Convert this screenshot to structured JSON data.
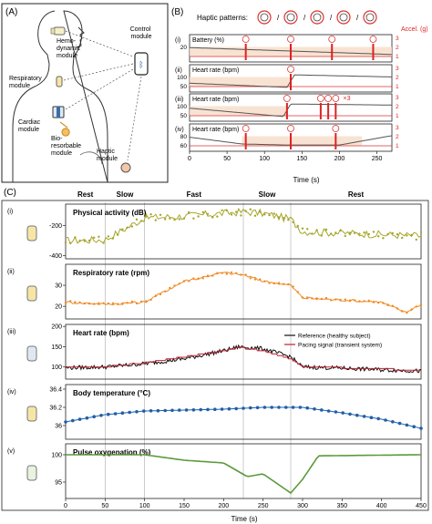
{
  "panel_a": {
    "label": "(A)",
    "modules": {
      "hemodynamic": "Hemo-\ndynamic\nmodule",
      "control": "Control\nmodule",
      "respiratory": "Respiratory\nmodule",
      "cardiac": "Cardiac\nmodule",
      "bioresorbable": "Bio-\nresorbable\nmodule",
      "haptic": "Haptic\nmodule"
    }
  },
  "panel_b": {
    "label": "(B)",
    "haptic_title": "Haptic patterns:",
    "separator": "/",
    "right_axis_label": "Accel. (g)",
    "xlabel": "Time (s)",
    "xticks": [
      0,
      50,
      100,
      150,
      200,
      250
    ],
    "x_range": [
      0,
      270
    ],
    "x3_label": "×3",
    "rows": [
      {
        "roman": "(i)",
        "title": "Battery (%)",
        "yticks": [
          20
        ],
        "rticks": [
          "3",
          "2",
          "1"
        ]
      },
      {
        "roman": "(ii)",
        "title": "Heart rate (bpm)",
        "yticks": [
          100,
          50
        ],
        "rticks": [
          "3",
          "2",
          "1"
        ]
      },
      {
        "roman": "(iii)",
        "title": "Heart rate (bpm)",
        "yticks": [
          100,
          50
        ],
        "rticks": [
          "3",
          "2",
          "1"
        ]
      },
      {
        "roman": "(iv)",
        "title": "Heart rate (bpm)",
        "yticks": [
          80,
          60
        ],
        "rticks": [
          "3",
          "2",
          "1"
        ]
      }
    ]
  },
  "panel_c": {
    "label": "(C)",
    "phases": [
      {
        "name": "Rest",
        "start": 0,
        "end": 50
      },
      {
        "name": "Slow",
        "start": 50,
        "end": 100
      },
      {
        "name": "Fast",
        "start": 100,
        "end": 225
      },
      {
        "name": "Slow",
        "start": 225,
        "end": 285
      },
      {
        "name": "Rest",
        "start": 285,
        "end": 450
      }
    ],
    "xlabel": "Time (s)",
    "xticks": [
      0,
      50,
      100,
      150,
      200,
      250,
      300,
      350,
      400,
      450
    ],
    "rows": [
      {
        "roman": "(i)",
        "title": "Physical activity (dB)",
        "yticks": [
          -200,
          -400
        ],
        "ylim": [
          -420,
          -60
        ],
        "color": "#a5a52a"
      },
      {
        "roman": "(ii)",
        "title": "Respiratory rate (rpm)",
        "yticks": [
          30,
          20
        ],
        "ylim": [
          14,
          40
        ],
        "color": "#f08a24"
      },
      {
        "roman": "(iii)",
        "title": "Heart rate (bpm)",
        "yticks": [
          200,
          150,
          100
        ],
        "ylim": [
          70,
          205
        ],
        "color": "#111111"
      },
      {
        "roman": "(iv)",
        "title": "Body temperature (°C)",
        "yticks": [
          36.4,
          36.2,
          36.0
        ],
        "ylim": [
          35.85,
          36.45
        ],
        "color": "#1f5fa8"
      },
      {
        "roman": "(v)",
        "title": "Pulse oxygenation (%)",
        "yticks": [
          100,
          95
        ],
        "ylim": [
          92,
          102
        ],
        "color": "#5c9a3c"
      }
    ],
    "legend": {
      "reference": "Reference (healthy subject)",
      "pacing": "Pacing signal (transient system)"
    }
  },
  "chart_data": [
    {
      "type": "line",
      "xlabel": "Time (s)",
      "x_range": [
        0,
        270
      ],
      "series": [
        {
          "name": "Battery (%)",
          "x": [
            0,
            270
          ],
          "y": [
            24,
            15
          ]
        },
        {
          "name": "Heart rate (bpm)",
          "x": [
            0,
            130,
            140,
            270
          ],
          "y": [
            60,
            40,
            100,
            90
          ]
        },
        {
          "name": "Heart rate (bpm)",
          "x": [
            0,
            125,
            135,
            270
          ],
          "y": [
            80,
            40,
            100,
            95
          ]
        },
        {
          "name": "Heart rate (bpm)",
          "x": [
            0,
            70,
            130,
            200,
            270
          ],
          "y": [
            75,
            62,
            60,
            60,
            78
          ]
        }
      ]
    },
    {
      "type": "line",
      "xlabel": "Time (s)",
      "x_range": [
        0,
        450
      ],
      "series": [
        {
          "name": "Physical activity (dB)",
          "x": [
            0,
            50,
            100,
            150,
            200,
            225,
            250,
            285,
            300,
            350,
            400,
            450
          ],
          "y": [
            -300,
            -295,
            -150,
            -140,
            -120,
            -110,
            -120,
            -160,
            -240,
            -250,
            -260,
            -270
          ]
        },
        {
          "name": "Respiratory rate (rpm)",
          "x": [
            0,
            50,
            100,
            150,
            200,
            225,
            250,
            285,
            300,
            350,
            400,
            430,
            450
          ],
          "y": [
            22,
            21,
            22,
            32,
            36,
            35,
            32,
            30,
            24,
            23,
            22,
            17,
            21
          ]
        },
        {
          "name": "Reference (healthy subject)",
          "x": [
            0,
            50,
            100,
            150,
            200,
            220,
            250,
            285,
            300,
            350,
            400,
            450
          ],
          "y": [
            98,
            100,
            108,
            120,
            140,
            150,
            145,
            125,
            100,
            97,
            93,
            90
          ]
        },
        {
          "name": "Pacing signal (transient system)",
          "x": [
            0,
            50,
            100,
            150,
            200,
            220,
            250,
            285,
            300,
            350,
            400,
            450
          ],
          "y": [
            100,
            100,
            110,
            125,
            140,
            148,
            140,
            120,
            100,
            98,
            95,
            92
          ]
        },
        {
          "name": "Body temperature (°C)",
          "x": [
            0,
            50,
            100,
            150,
            200,
            250,
            300,
            350,
            400,
            450
          ],
          "y": [
            36.04,
            36.12,
            36.16,
            36.17,
            36.18,
            36.2,
            36.2,
            36.14,
            36.07,
            35.97
          ]
        },
        {
          "name": "Pulse oxygenation (%)",
          "x": [
            0,
            100,
            150,
            200,
            230,
            250,
            265,
            285,
            300,
            320,
            450
          ],
          "y": [
            100,
            100,
            99,
            98.5,
            96,
            96.5,
            95,
            93,
            95.5,
            99.8,
            100
          ]
        }
      ]
    }
  ]
}
